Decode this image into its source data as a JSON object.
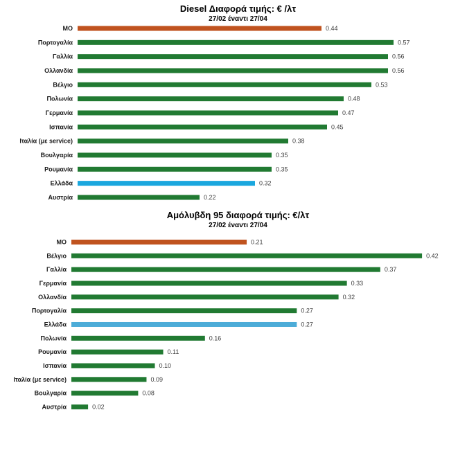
{
  "chart_data": [
    {
      "type": "bar",
      "orientation": "horizontal",
      "title": "Diesel Διαφορά τιμής: € /λτ",
      "subtitle": "27/02 έναντι 27/04",
      "xlim": [
        0,
        0.6
      ],
      "grid": false,
      "categories": [
        "ΜΟ",
        "Πορτογαλία",
        "Γαλλία",
        "Ολλανδία",
        "Βέλγιο",
        "Πολωνία",
        "Γερμανία",
        "Ισπανία",
        "Ιταλία (με service)",
        "Βουλγαρία",
        "Ρουμανία",
        "Ελλάδα",
        "Αυστρία"
      ],
      "values": [
        0.44,
        0.57,
        0.56,
        0.56,
        0.53,
        0.48,
        0.47,
        0.45,
        0.38,
        0.35,
        0.35,
        0.32,
        0.22
      ],
      "value_labels": [
        "0.44",
        "0.57",
        "0.56",
        "0.56",
        "0.53",
        "0.48",
        "0.47",
        "0.45",
        "0.38",
        "0.35",
        "0.35",
        "0.32",
        "0.22"
      ],
      "colors": [
        "#c0531f",
        "#217a32",
        "#217a32",
        "#217a32",
        "#217a32",
        "#217a32",
        "#217a32",
        "#217a32",
        "#217a32",
        "#217a32",
        "#217a32",
        "#1aa7de",
        "#217a32"
      ]
    },
    {
      "type": "bar",
      "orientation": "horizontal",
      "title": "Αμόλυβδη 95 διαφορά τιμής: €/λτ",
      "subtitle": "27/02 έναντι 27/04",
      "xlim": [
        0,
        0.6
      ],
      "grid": false,
      "categories": [
        "ΜΟ",
        "Βέλγιο",
        "Γαλλία",
        "Γερμανία",
        "Ολλανδία",
        "Πορτογαλία",
        "Ελλάδα",
        "Πολωνία",
        "Ρουμανία",
        "Ισπανία",
        "Ιταλία (με service)",
        "Βουλγαρία",
        "Αυστρία"
      ],
      "values": [
        0.21,
        0.42,
        0.37,
        0.33,
        0.32,
        0.27,
        0.27,
        0.16,
        0.11,
        0.1,
        0.09,
        0.08,
        0.02
      ],
      "value_labels": [
        "0.21",
        "0.42",
        "0.37",
        "0.33",
        "0.32",
        "0.27",
        "0.27",
        "0.16",
        "0.11",
        "0.10",
        "0.09",
        "0.08",
        "0.02"
      ],
      "colors": [
        "#c0531f",
        "#217a32",
        "#217a32",
        "#217a32",
        "#217a32",
        "#217a32",
        "#4cacd8",
        "#217a32",
        "#217a32",
        "#217a32",
        "#217a32",
        "#217a32",
        "#217a32"
      ]
    }
  ]
}
